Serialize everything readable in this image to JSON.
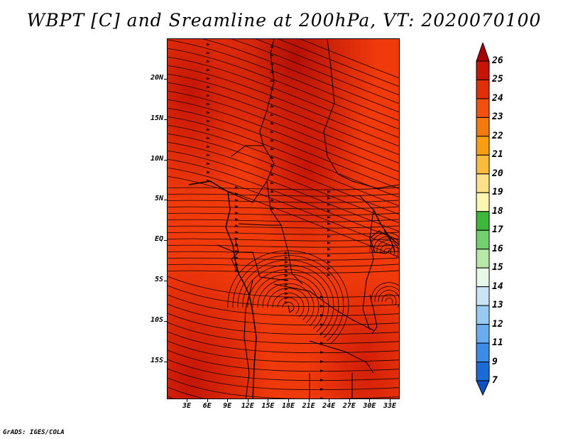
{
  "title": "WBPT [C] and Sreamline at 200hPa, VT: 2020070100",
  "map": {
    "lat_labels": [
      "20N",
      "15N",
      "10N",
      "5N",
      "EQ",
      "5S",
      "10S",
      "15S"
    ],
    "lon_labels": [
      "3E",
      "6E",
      "9E",
      "12E",
      "15E",
      "18E",
      "21E",
      "24E",
      "27E",
      "30E",
      "33E"
    ],
    "field_colors": {
      "base": "#f03a0c",
      "warm": "#d11e08",
      "hot": "#b40f06"
    }
  },
  "colorbar": {
    "labels": [
      "26",
      "25",
      "24",
      "23",
      "22",
      "21",
      "20",
      "19",
      "18",
      "17",
      "16",
      "15",
      "14",
      "13",
      "12",
      "11",
      "9",
      "7"
    ],
    "colors": [
      "#a50303",
      "#c41505",
      "#e32e0a",
      "#f2500e",
      "#f57a0e",
      "#f99e10",
      "#fbbb3c",
      "#fde08a",
      "#fdf6b0",
      "#3cb83c",
      "#73d06e",
      "#b8e8a8",
      "#e8f8e8",
      "#c9e4f7",
      "#98cbf4",
      "#69acf0",
      "#3d8de8",
      "#1c6ad8",
      "#1150c4"
    ]
  },
  "credit": "GrADS: IGES/COLA"
}
